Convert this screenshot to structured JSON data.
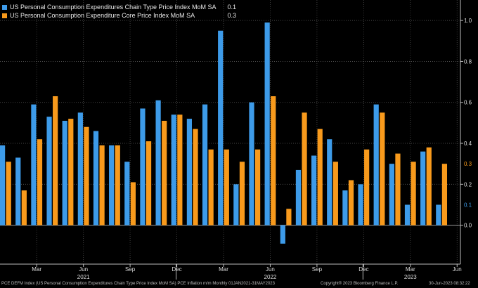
{
  "legend": [
    {
      "name": "US Personal Consumption Expenditures Chain Type Price Index MoM SA",
      "value": "0.1",
      "color": "#3d9be9"
    },
    {
      "name": "US Personal Consumption Expenditure Core Price Index MoM SA",
      "value": "0.3",
      "color": "#f89a1c"
    }
  ],
  "footer": {
    "left": "PCE DEFM Index (US Personal Consumption Expenditures Chain Type Price Index MoM SA) PCE Inflation m/m  Monthly 01JAN2021-31MAY2023",
    "copyright": "Copyright® 2023 Bloomberg Finance L.P.",
    "timestamp": "30-Jun-2023 08:32:22"
  },
  "chart_data": {
    "type": "bar",
    "x": [
      "Jan 2021",
      "Feb 2021",
      "Mar 2021",
      "Apr 2021",
      "May 2021",
      "Jun 2021",
      "Jul 2021",
      "Aug 2021",
      "Sep 2021",
      "Oct 2021",
      "Nov 2021",
      "Dec 2021",
      "Jan 2022",
      "Feb 2022",
      "Mar 2022",
      "Apr 2022",
      "May 2022",
      "Jun 2022",
      "Jul 2022",
      "Aug 2022",
      "Sep 2022",
      "Oct 2022",
      "Nov 2022",
      "Dec 2022",
      "Jan 2023",
      "Feb 2023",
      "Mar 2023",
      "Apr 2023",
      "May 2023"
    ],
    "series": [
      {
        "name": "US Personal Consumption Expenditures Chain Type Price Index MoM SA",
        "color": "#3d9be9",
        "values": [
          0.39,
          0.33,
          0.59,
          0.53,
          0.51,
          0.55,
          0.46,
          0.39,
          0.31,
          0.57,
          0.61,
          0.54,
          0.52,
          0.59,
          0.95,
          0.2,
          0.6,
          0.99,
          -0.09,
          0.27,
          0.34,
          0.42,
          0.17,
          0.2,
          0.59,
          0.3,
          0.1,
          0.36,
          0.1
        ]
      },
      {
        "name": "US Personal Consumption Expenditure Core Price Index MoM SA",
        "color": "#f89a1c",
        "values": [
          0.31,
          0.17,
          0.42,
          0.63,
          0.52,
          0.48,
          0.39,
          0.39,
          0.21,
          0.41,
          0.51,
          0.54,
          0.47,
          0.37,
          0.37,
          0.31,
          0.37,
          0.63,
          0.08,
          0.55,
          0.47,
          0.31,
          0.22,
          0.37,
          0.55,
          0.35,
          0.31,
          0.38,
          0.3
        ]
      }
    ],
    "ylim": [
      -0.19,
      1.1
    ],
    "yticks": [
      "1.0",
      "0.8",
      "0.6",
      "0.4",
      "0.2",
      "0.0"
    ],
    "ytick_values": [
      1.0,
      0.8,
      0.6,
      0.4,
      0.2,
      0.0
    ],
    "xtick_labels": [
      {
        "label": "Mar",
        "index": 2
      },
      {
        "label": "Jun",
        "index": 5
      },
      {
        "label": "Sep",
        "index": 8
      },
      {
        "label": "Dec",
        "index": 11
      },
      {
        "label": "Mar",
        "index": 14
      },
      {
        "label": "Jun",
        "index": 17
      },
      {
        "label": "Sep",
        "index": 20
      },
      {
        "label": "Dec",
        "index": 23
      },
      {
        "label": "Mar",
        "index": 26
      },
      {
        "label": "Jun",
        "index": 29
      }
    ],
    "year_labels": [
      {
        "label": "2021",
        "index": 5
      },
      {
        "label": "2022",
        "index": 17
      },
      {
        "label": "2023",
        "index": 26
      }
    ],
    "last_value_tags": [
      {
        "label": "0.3",
        "value": 0.3,
        "color": "#f89a1c"
      },
      {
        "label": "0.1",
        "value": 0.1,
        "color": "#3d9be9"
      }
    ],
    "grid": true
  }
}
